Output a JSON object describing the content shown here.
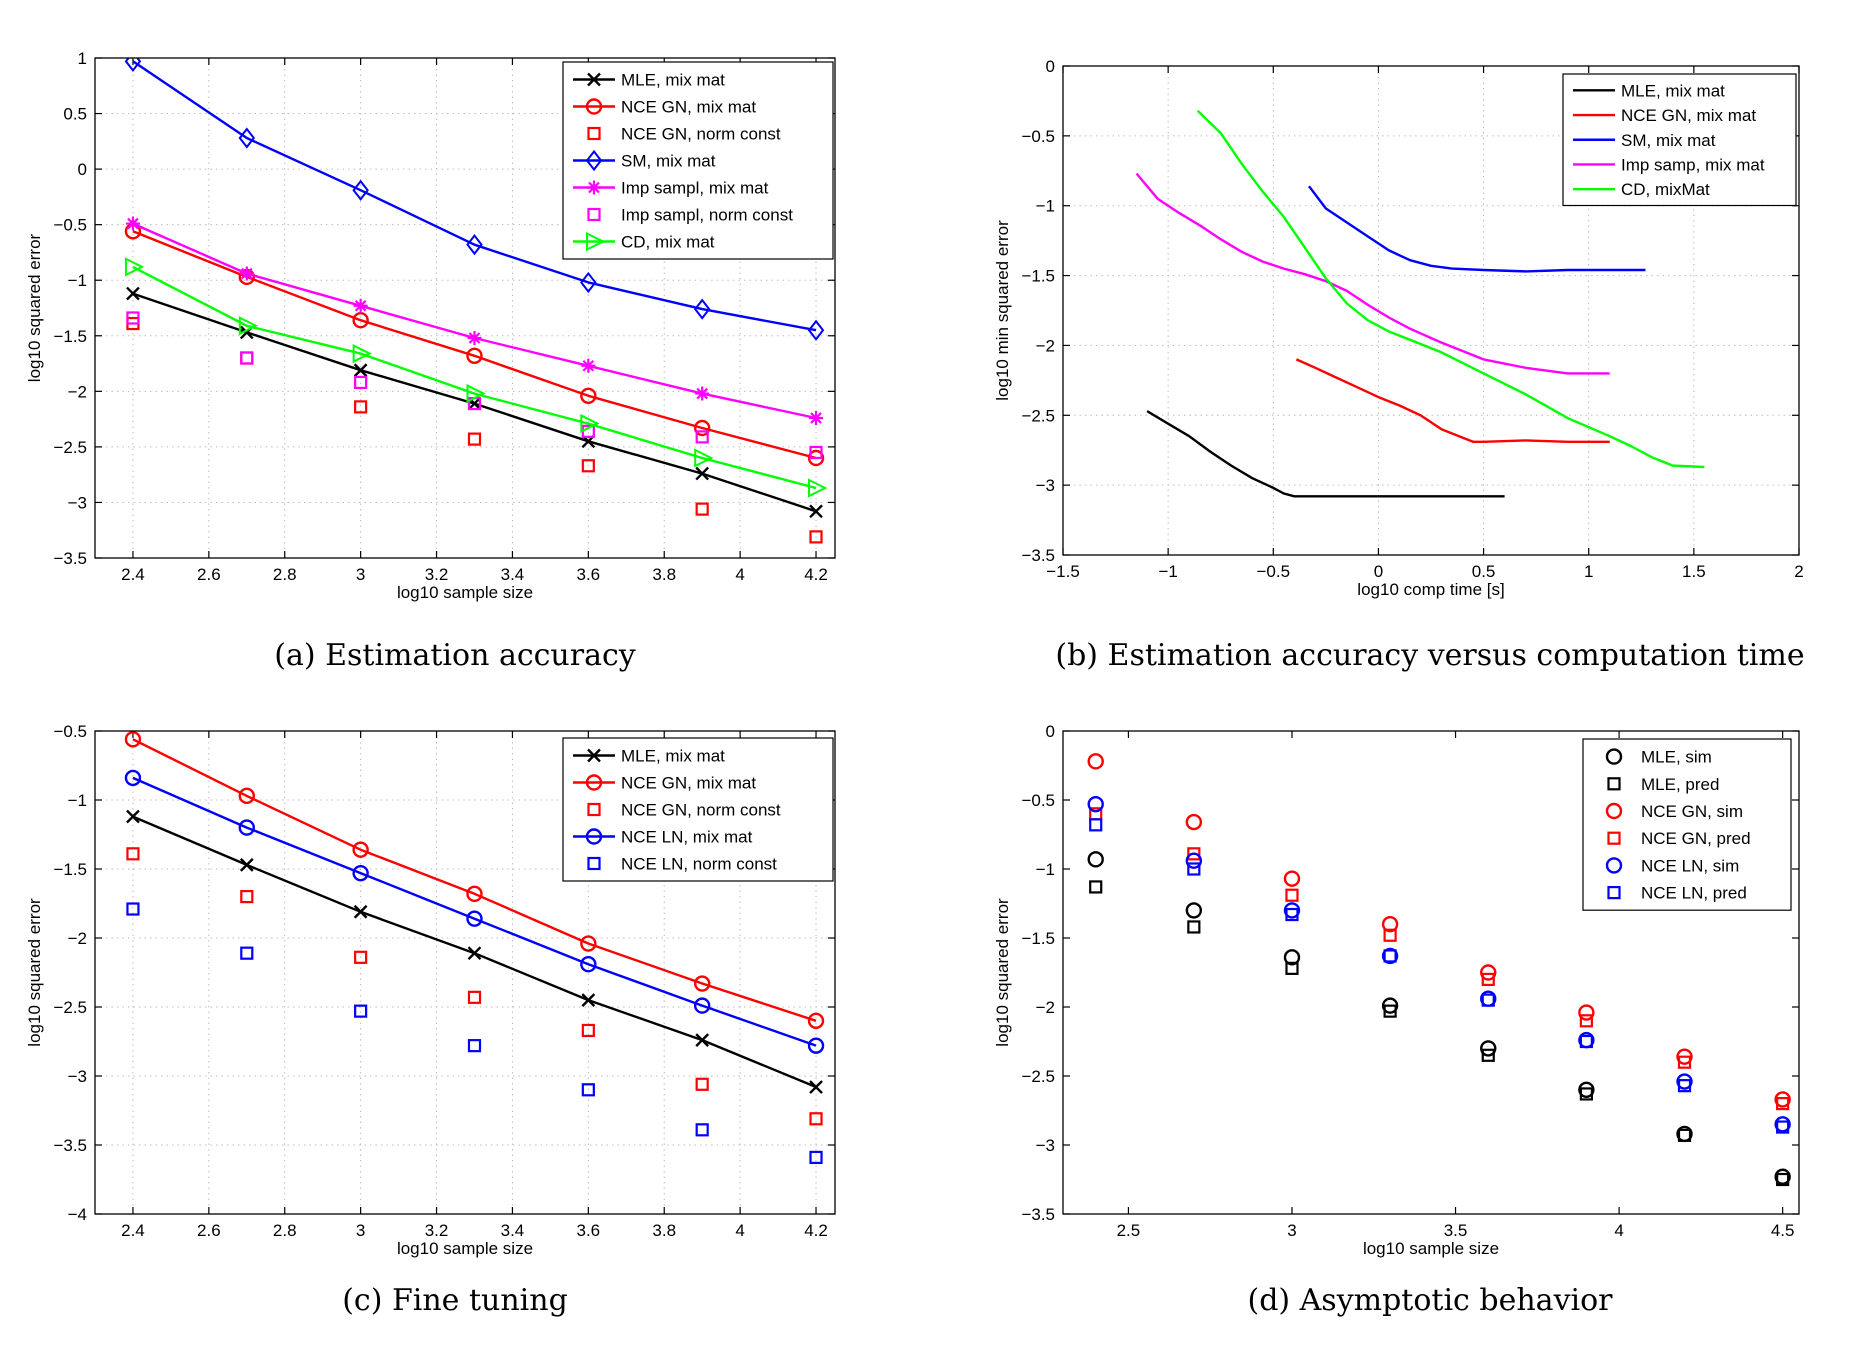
{
  "chart_data": [
    {
      "id": "a",
      "type": "line",
      "caption": "(a) Estimation accuracy",
      "xlabel": "log10 sample size",
      "ylabel": "log10 squared error",
      "xlim": [
        2.3,
        4.25
      ],
      "ylim": [
        -3.5,
        1
      ],
      "xticks": [
        2.4,
        2.6,
        2.8,
        3,
        3.2,
        3.4,
        3.6,
        3.8,
        4,
        4.2
      ],
      "yticks": [
        -3.5,
        -3,
        -2.5,
        -2,
        -1.5,
        -1,
        -0.5,
        0,
        0.5,
        1
      ],
      "grid": true,
      "legend_position": "top-right",
      "series": [
        {
          "name": "MLE, mix mat",
          "color": "#000000",
          "marker": "x",
          "line": true,
          "x": [
            2.4,
            2.7,
            3.0,
            3.3,
            3.6,
            3.9,
            4.2
          ],
          "y": [
            -1.12,
            -1.47,
            -1.81,
            -2.11,
            -2.45,
            -2.74,
            -3.08
          ]
        },
        {
          "name": "NCE GN, mix mat",
          "color": "#ff0000",
          "marker": "o",
          "line": true,
          "x": [
            2.4,
            2.7,
            3.0,
            3.3,
            3.6,
            3.9,
            4.2
          ],
          "y": [
            -0.56,
            -0.97,
            -1.36,
            -1.68,
            -2.04,
            -2.33,
            -2.6
          ]
        },
        {
          "name": "NCE GN, norm const",
          "color": "#ff0000",
          "marker": "s",
          "line": false,
          "x": [
            2.4,
            2.7,
            3.0,
            3.3,
            3.6,
            3.9,
            4.2
          ],
          "y": [
            -1.39,
            -1.7,
            -2.14,
            -2.43,
            -2.67,
            -3.06,
            -3.31
          ]
        },
        {
          "name": "SM, mix mat",
          "color": "#0000ff",
          "marker": "d",
          "line": true,
          "x": [
            2.4,
            2.7,
            3.0,
            3.3,
            3.6,
            3.9,
            4.2
          ],
          "y": [
            0.97,
            0.28,
            -0.19,
            -0.68,
            -1.02,
            -1.26,
            -1.45
          ]
        },
        {
          "name": "Imp sampl, mix mat",
          "color": "#ff00ff",
          "marker": "*",
          "line": true,
          "x": [
            2.4,
            2.7,
            3.0,
            3.3,
            3.6,
            3.9,
            4.2
          ],
          "y": [
            -0.49,
            -0.94,
            -1.23,
            -1.52,
            -1.77,
            -2.02,
            -2.24
          ]
        },
        {
          "name": "Imp sampl, norm const",
          "color": "#ff00ff",
          "marker": "s",
          "line": false,
          "x": [
            2.4,
            2.7,
            3.0,
            3.3,
            3.6,
            3.9,
            4.2
          ],
          "y": [
            -1.34,
            -1.7,
            -1.92,
            -2.11,
            -2.36,
            -2.41,
            -2.55
          ]
        },
        {
          "name": "CD, mix mat",
          "color": "#00ff00",
          "marker": ">",
          "line": true,
          "x": [
            2.4,
            2.7,
            3.0,
            3.3,
            3.6,
            3.9,
            4.2
          ],
          "y": [
            -0.88,
            -1.41,
            -1.66,
            -2.02,
            -2.29,
            -2.6,
            -2.87
          ]
        }
      ]
    },
    {
      "id": "b",
      "type": "line",
      "caption": "(b) Estimation accuracy versus computation time",
      "xlabel": "log10 comp time [s]",
      "ylabel": "log10 min squared error",
      "xlim": [
        -1.5,
        2
      ],
      "ylim": [
        -3.5,
        0
      ],
      "xticks": [
        -1.5,
        -1,
        -0.5,
        0,
        0.5,
        1,
        1.5,
        2
      ],
      "yticks": [
        -3.5,
        -3,
        -2.5,
        -2,
        -1.5,
        -1,
        -0.5,
        0
      ],
      "grid": true,
      "legend_position": "top-right",
      "series": [
        {
          "name": "MLE, mix mat",
          "color": "#000000",
          "marker": "",
          "line": true,
          "x": [
            -1.1,
            -1.0,
            -0.9,
            -0.8,
            -0.7,
            -0.6,
            -0.5,
            -0.45,
            -0.4,
            -0.3,
            0.0,
            0.3,
            0.6
          ],
          "y": [
            -2.47,
            -2.56,
            -2.65,
            -2.76,
            -2.86,
            -2.95,
            -3.02,
            -3.06,
            -3.08,
            -3.08,
            -3.08,
            -3.08,
            -3.08
          ]
        },
        {
          "name": "NCE GN, mix mat",
          "color": "#ff0000",
          "marker": "",
          "line": true,
          "x": [
            -0.39,
            -0.3,
            -0.2,
            -0.1,
            0.0,
            0.1,
            0.2,
            0.3,
            0.4,
            0.45,
            0.5,
            0.7,
            0.9,
            1.1
          ],
          "y": [
            -2.1,
            -2.16,
            -2.23,
            -2.3,
            -2.37,
            -2.43,
            -2.5,
            -2.6,
            -2.66,
            -2.69,
            -2.69,
            -2.68,
            -2.69,
            -2.69
          ]
        },
        {
          "name": "SM, mix mat",
          "color": "#0000ff",
          "marker": "",
          "line": true,
          "x": [
            -0.33,
            -0.25,
            -0.15,
            -0.05,
            0.05,
            0.15,
            0.25,
            0.35,
            0.5,
            0.7,
            0.9,
            1.1,
            1.27
          ],
          "y": [
            -0.86,
            -1.02,
            -1.12,
            -1.22,
            -1.32,
            -1.39,
            -1.43,
            -1.45,
            -1.46,
            -1.47,
            -1.46,
            -1.46,
            -1.46
          ]
        },
        {
          "name": "Imp samp, mix mat",
          "color": "#ff00ff",
          "marker": "",
          "line": true,
          "x": [
            -1.15,
            -1.05,
            -0.95,
            -0.85,
            -0.75,
            -0.65,
            -0.55,
            -0.45,
            -0.35,
            -0.25,
            -0.15,
            -0.05,
            0.05,
            0.15,
            0.3,
            0.5,
            0.7,
            0.9,
            1.1
          ],
          "y": [
            -0.77,
            -0.95,
            -1.05,
            -1.14,
            -1.24,
            -1.33,
            -1.4,
            -1.45,
            -1.49,
            -1.54,
            -1.61,
            -1.71,
            -1.8,
            -1.88,
            -1.98,
            -2.1,
            -2.16,
            -2.2,
            -2.2
          ]
        },
        {
          "name": "CD, mixMat",
          "color": "#00ff00",
          "marker": "",
          "line": true,
          "x": [
            -0.86,
            -0.75,
            -0.65,
            -0.55,
            -0.45,
            -0.35,
            -0.25,
            -0.15,
            -0.05,
            0.05,
            0.15,
            0.3,
            0.5,
            0.7,
            0.9,
            1.1,
            1.2,
            1.3,
            1.4,
            1.55
          ],
          "y": [
            -0.32,
            -0.48,
            -0.7,
            -0.9,
            -1.08,
            -1.3,
            -1.52,
            -1.7,
            -1.82,
            -1.9,
            -1.96,
            -2.05,
            -2.2,
            -2.35,
            -2.52,
            -2.65,
            -2.72,
            -2.8,
            -2.86,
            -2.87
          ]
        }
      ]
    },
    {
      "id": "c",
      "type": "line",
      "caption": "(c) Fine tuning",
      "xlabel": "log10 sample size",
      "ylabel": "log10 squared error",
      "xlim": [
        2.3,
        4.25
      ],
      "ylim": [
        -4,
        -0.5
      ],
      "xticks": [
        2.4,
        2.6,
        2.8,
        3,
        3.2,
        3.4,
        3.6,
        3.8,
        4,
        4.2
      ],
      "yticks": [
        -4,
        -3.5,
        -3,
        -2.5,
        -2,
        -1.5,
        -1,
        -0.5
      ],
      "grid": true,
      "legend_position": "top-right",
      "series": [
        {
          "name": "MLE, mix mat",
          "color": "#000000",
          "marker": "x",
          "line": true,
          "x": [
            2.4,
            2.7,
            3.0,
            3.3,
            3.6,
            3.9,
            4.2
          ],
          "y": [
            -1.12,
            -1.47,
            -1.81,
            -2.11,
            -2.45,
            -2.74,
            -3.08
          ]
        },
        {
          "name": "NCE GN, mix mat",
          "color": "#ff0000",
          "marker": "o",
          "line": true,
          "x": [
            2.4,
            2.7,
            3.0,
            3.3,
            3.6,
            3.9,
            4.2
          ],
          "y": [
            -0.56,
            -0.97,
            -1.36,
            -1.68,
            -2.04,
            -2.33,
            -2.6
          ]
        },
        {
          "name": "NCE GN, norm const",
          "color": "#ff0000",
          "marker": "s",
          "line": false,
          "x": [
            2.4,
            2.7,
            3.0,
            3.3,
            3.6,
            3.9,
            4.2
          ],
          "y": [
            -1.39,
            -1.7,
            -2.14,
            -2.43,
            -2.67,
            -3.06,
            -3.31
          ]
        },
        {
          "name": "NCE LN, mix mat",
          "color": "#0000ff",
          "marker": "o",
          "line": true,
          "x": [
            2.4,
            2.7,
            3.0,
            3.3,
            3.6,
            3.9,
            4.2
          ],
          "y": [
            -0.84,
            -1.2,
            -1.53,
            -1.86,
            -2.19,
            -2.49,
            -2.78
          ]
        },
        {
          "name": "NCE LN, norm const",
          "color": "#0000ff",
          "marker": "s",
          "line": false,
          "x": [
            2.4,
            2.7,
            3.0,
            3.3,
            3.6,
            3.9,
            4.2
          ],
          "y": [
            -1.79,
            -2.11,
            -2.53,
            -2.78,
            -3.1,
            -3.39,
            -3.59
          ]
        }
      ]
    },
    {
      "id": "d",
      "type": "scatter",
      "caption": "(d) Asymptotic behavior",
      "xlabel": "log10 sample size",
      "ylabel": "log10 squared error",
      "xlim": [
        2.3,
        4.55
      ],
      "ylim": [
        -3.5,
        0
      ],
      "xticks": [
        2.5,
        3,
        3.5,
        4,
        4.5
      ],
      "yticks": [
        -3.5,
        -3,
        -2.5,
        -2,
        -1.5,
        -1,
        -0.5,
        0
      ],
      "grid": false,
      "legend_position": "top-right",
      "series": [
        {
          "name": "MLE, sim",
          "color": "#000000",
          "marker": "o",
          "line": false,
          "x": [
            2.4,
            2.7,
            3.0,
            3.3,
            3.6,
            3.9,
            4.2,
            4.5
          ],
          "y": [
            -0.93,
            -1.3,
            -1.64,
            -1.99,
            -2.3,
            -2.6,
            -2.92,
            -3.23
          ]
        },
        {
          "name": "MLE, pred",
          "color": "#000000",
          "marker": "s",
          "line": false,
          "x": [
            2.4,
            2.7,
            3.0,
            3.3,
            3.6,
            3.9,
            4.2,
            4.5
          ],
          "y": [
            -1.13,
            -1.42,
            -1.72,
            -2.03,
            -2.35,
            -2.63,
            -2.93,
            -3.25
          ]
        },
        {
          "name": "NCE GN, sim",
          "color": "#ff0000",
          "marker": "o",
          "line": false,
          "x": [
            2.4,
            2.7,
            3.0,
            3.3,
            3.6,
            3.9,
            4.2,
            4.5
          ],
          "y": [
            -0.22,
            -0.66,
            -1.07,
            -1.4,
            -1.75,
            -2.04,
            -2.36,
            -2.67
          ]
        },
        {
          "name": "NCE GN, pred",
          "color": "#ff0000",
          "marker": "s",
          "line": false,
          "x": [
            2.4,
            2.7,
            3.0,
            3.3,
            3.6,
            3.9,
            4.2,
            4.5
          ],
          "y": [
            -0.6,
            -0.89,
            -1.19,
            -1.48,
            -1.8,
            -2.1,
            -2.4,
            -2.7
          ]
        },
        {
          "name": "NCE LN, sim",
          "color": "#0000ff",
          "marker": "o",
          "line": false,
          "x": [
            2.4,
            2.7,
            3.0,
            3.3,
            3.6,
            3.9,
            4.2,
            4.5
          ],
          "y": [
            -0.53,
            -0.94,
            -1.3,
            -1.63,
            -1.94,
            -2.24,
            -2.54,
            -2.85
          ]
        },
        {
          "name": "NCE LN, pred",
          "color": "#0000ff",
          "marker": "s",
          "line": false,
          "x": [
            2.4,
            2.7,
            3.0,
            3.3,
            3.6,
            3.9,
            4.2,
            4.5
          ],
          "y": [
            -0.68,
            -1.0,
            -1.33,
            -1.63,
            -1.95,
            -2.25,
            -2.57,
            -2.87
          ]
        }
      ]
    }
  ]
}
